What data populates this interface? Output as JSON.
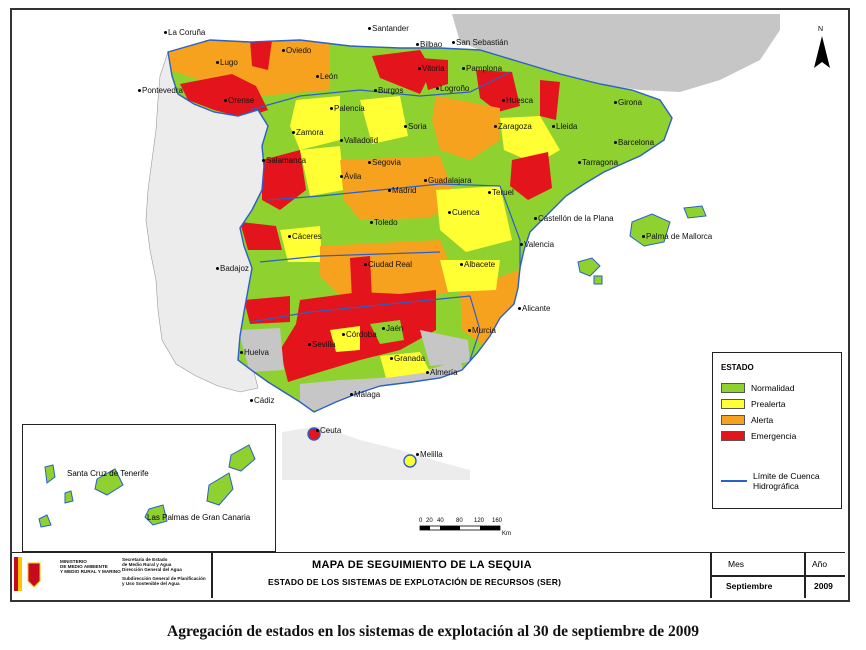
{
  "map": {
    "colors": {
      "sea": "#ffffff",
      "foreign_land": "#c6c6c6",
      "portugal": "#ececec",
      "normalidad": "#8fd12f",
      "prealerta": "#ffff33",
      "alerta": "#f7a21e",
      "emergencia": "#e3141c",
      "basin_line": "#2b5fc9"
    },
    "north_label": "N",
    "cities": [
      "La Coruña",
      "Santander",
      "Bilbao",
      "San Sebastián",
      "Oviedo",
      "Lugo",
      "Vitoria",
      "Pamplona",
      "León",
      "Pontevedra",
      "Burgos",
      "Logroño",
      "Huesca",
      "Girona",
      "Orense",
      "Palencia",
      "Soria",
      "Lleida",
      "Barcelona",
      "Zamora",
      "Valladolid",
      "Zaragoza",
      "Tarragona",
      "Salamanca",
      "Segovia",
      "Madrid",
      "Guadalajara",
      "Ávila",
      "Teruel",
      "Toledo",
      "Cuenca",
      "Castellón de la Plana",
      "Palma de Mallorca",
      "Cáceres",
      "Valencia",
      "Ciudad Real",
      "Albacete",
      "Badajoz",
      "Alicante",
      "Córdoba",
      "Jaén",
      "Murcia",
      "Huelva",
      "Sevilla",
      "Granada",
      "Almería",
      "Cádiz",
      "Málaga",
      "Ceuta",
      "Melilla",
      "Santa Cruz de Tenerife",
      "Las Palmas de Gran Canaria"
    ]
  },
  "legend": {
    "title": "ESTADO",
    "items": [
      {
        "label": "Normalidad",
        "color": "#8fd12f"
      },
      {
        "label": "Prealerta",
        "color": "#ffff33"
      },
      {
        "label": "Alerta",
        "color": "#f7a21e"
      },
      {
        "label": "Emergencia",
        "color": "#e3141c"
      }
    ],
    "line_label": "Límite de Cuenca Hidrográfica"
  },
  "scale": {
    "ticks": [
      "0",
      "20",
      "40",
      "80",
      "120",
      "160"
    ],
    "unit": "Km"
  },
  "footer": {
    "ministry": [
      "MINISTERIO",
      "DE MEDIO AMBIENTE",
      "Y MEDIO RURAL Y MARINO"
    ],
    "secretaria": [
      "Secretaría de Estado",
      "de Medio Rural y Agua",
      "Dirección General del Agua"
    ],
    "subdireccion": [
      "Subdirección General de Planificación",
      "y Uso Sostenible del Agua"
    ],
    "title": "MAPA DE SEGUIMIENTO DE LA SEQUIA",
    "subtitle": "ESTADO DE LOS SISTEMAS DE EXPLOTACIÓN DE RECURSOS (SER)",
    "month_label": "Mes",
    "month_value": "Septiembre",
    "year_label": "Año",
    "year_value": "2009"
  },
  "caption": "Agregación de estados en los sistemas de explotación al 30 de septiembre de 2009"
}
